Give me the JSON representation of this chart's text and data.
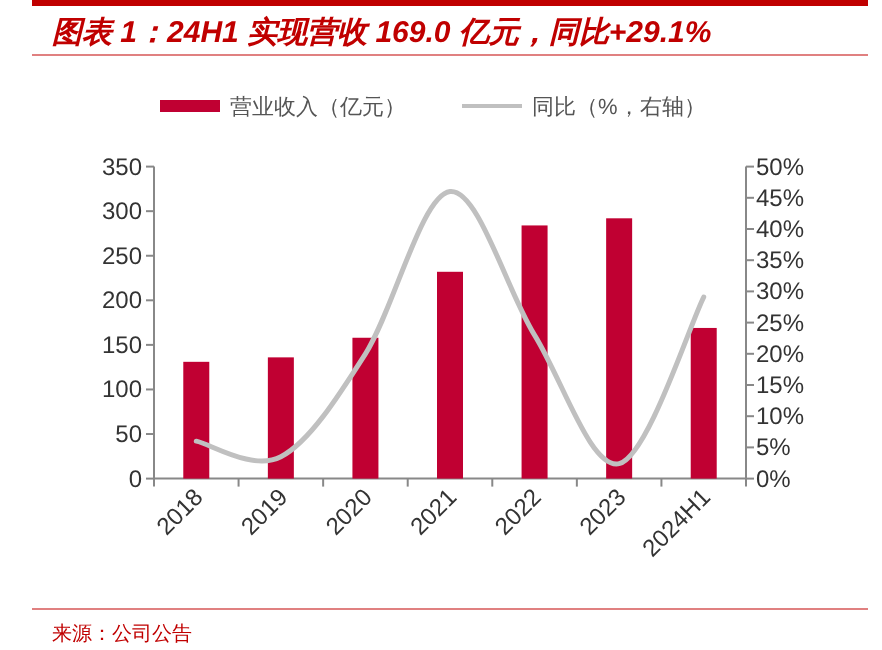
{
  "chart_data": {
    "type": "bar",
    "title": "图表 1：24H1 实现营收 169.0 亿元，同比+29.1%",
    "categories": [
      "2018",
      "2019",
      "2020",
      "2021",
      "2022",
      "2023",
      "2024H1"
    ],
    "series": [
      {
        "name": "营业收入（亿元）",
        "color": "#c00032",
        "values": [
          131,
          136,
          158,
          232,
          284,
          292,
          169
        ]
      },
      {
        "name": "同比（%，右轴）",
        "type": "line",
        "axis": "y2",
        "color": "#c0c0c0",
        "values": [
          6.0,
          3.5,
          20,
          46,
          23,
          2.4,
          29.1
        ]
      }
    ],
    "ylim": [
      0,
      350
    ],
    "yticks": [
      0,
      50,
      100,
      150,
      200,
      250,
      300,
      350
    ],
    "y2lim": [
      0,
      50
    ],
    "y2ticks": [
      {
        "value": 0,
        "label": "0%"
      },
      {
        "value": 5,
        "label": "5%"
      },
      {
        "value": 10,
        "label": "10%"
      },
      {
        "value": 15,
        "label": "15%"
      },
      {
        "value": 20,
        "label": "20%"
      },
      {
        "value": 25,
        "label": "25%"
      },
      {
        "value": 30,
        "label": "30%"
      },
      {
        "value": 35,
        "label": "35%"
      },
      {
        "value": 40,
        "label": "40%"
      },
      {
        "value": 45,
        "label": "45%"
      },
      {
        "value": 50,
        "label": "50%"
      }
    ],
    "legend": "top",
    "grid": false,
    "annotations": [
      "来源：公司公告"
    ]
  }
}
